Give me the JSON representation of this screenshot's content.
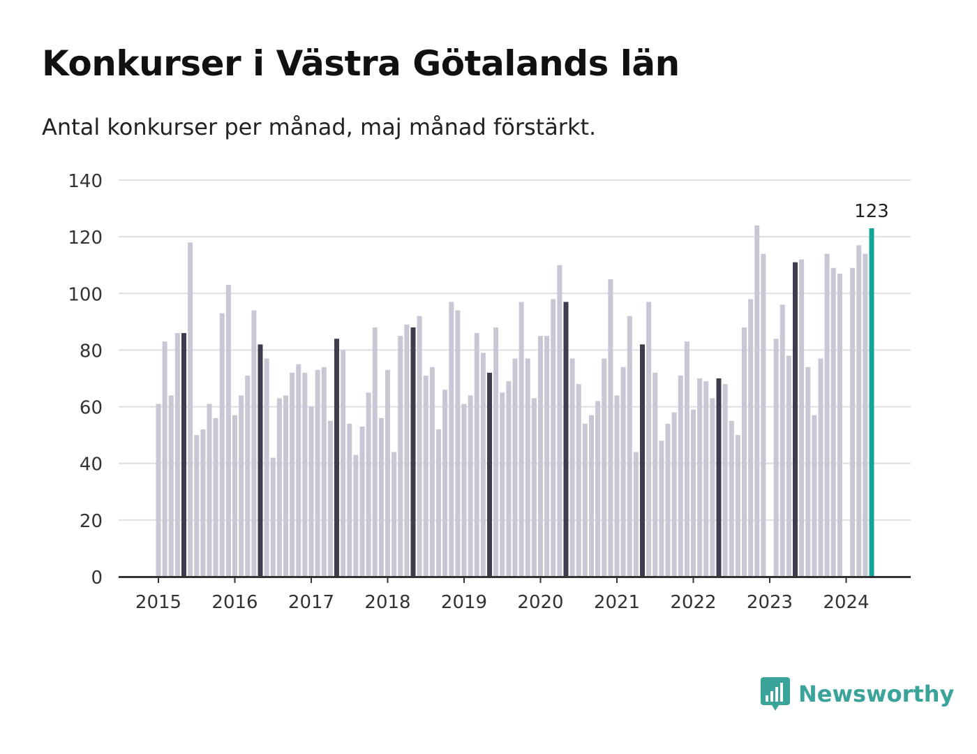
{
  "title": "Konkurser i Västra Götalands län",
  "subtitle": "Antal konkurser per månad, maj månad förstärkt.",
  "brand": {
    "name": "Newsworthy",
    "icon": "bar-chart-speech-bubble-icon"
  },
  "colors": {
    "bar": "#c8c7d4",
    "may_bar": "#3e3d4d",
    "current_bar": "#14a598",
    "grid": "#dedee3",
    "axis": "#333333",
    "brand": "#3aa39a"
  },
  "chart_data": {
    "type": "bar",
    "xlabel": "",
    "ylabel": "",
    "ylim": [
      0,
      140
    ],
    "yticks": [
      0,
      20,
      40,
      60,
      80,
      100,
      120,
      140
    ],
    "xticks": [
      "2015",
      "2016",
      "2017",
      "2018",
      "2019",
      "2020",
      "2021",
      "2022",
      "2023",
      "2024"
    ],
    "start": "2015-01",
    "grid": true,
    "legend": "none",
    "highlight_month": "maj",
    "highlighted_indices": [
      4,
      16,
      28,
      40,
      52,
      64,
      76,
      88,
      100,
      112
    ],
    "last_label": "123",
    "values": [
      61,
      83,
      64,
      86,
      86,
      118,
      50,
      52,
      61,
      56,
      93,
      103,
      57,
      64,
      71,
      94,
      82,
      77,
      42,
      63,
      64,
      72,
      75,
      72,
      60,
      73,
      74,
      55,
      84,
      80,
      54,
      43,
      53,
      65,
      88,
      56,
      73,
      44,
      85,
      89,
      88,
      92,
      71,
      74,
      52,
      66,
      97,
      94,
      61,
      64,
      86,
      79,
      72,
      88,
      65,
      69,
      77,
      97,
      77,
      63,
      85,
      85,
      98,
      110,
      97,
      77,
      68,
      54,
      57,
      62,
      77,
      105,
      64,
      74,
      92,
      44,
      82,
      97,
      72,
      48,
      54,
      58,
      71,
      83,
      59,
      70,
      69,
      63,
      70,
      68,
      55,
      50,
      88,
      98,
      124,
      114,
      null,
      84,
      96,
      78,
      111,
      112,
      74,
      57,
      77,
      114,
      109,
      107,
      null,
      109,
      117,
      114,
      123
    ]
  }
}
